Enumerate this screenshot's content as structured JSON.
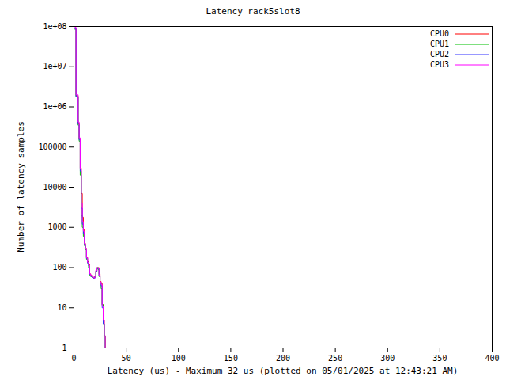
{
  "chart_data": {
    "type": "line",
    "title": "Latency rack5slot8",
    "x_label": "Latency (us) - Maximum 32 us (plotted on 05/01/2025 at 12:43:21 AM)",
    "y_label": "Number of latency samples",
    "log": "y",
    "grid": false,
    "legend": "top-right",
    "line_style": "step",
    "xlim": [
      0,
      400
    ],
    "xticks": [
      0,
      50,
      100,
      150,
      200,
      250,
      300,
      350,
      400
    ],
    "ylim": [
      1,
      100000000
    ],
    "yticks": [
      1,
      10,
      100,
      1000,
      10000,
      100000,
      {
        "value": 1000000,
        "label": "1e+06"
      },
      {
        "value": 10000000,
        "label": "1e+07"
      },
      {
        "value": 100000000,
        "label": "1e+08"
      }
    ],
    "x": [
      0,
      1,
      2,
      3,
      4,
      5,
      6,
      7,
      8,
      9,
      10,
      11,
      12,
      13,
      14,
      15,
      16,
      17,
      18,
      19,
      20,
      21,
      22,
      23,
      24,
      25,
      26,
      27,
      28,
      29,
      30,
      31,
      32
    ],
    "series": [
      {
        "name": "CPU0",
        "color": "#ff0000",
        "values": [
          null,
          90000000,
          1900000,
          1900000,
          400000,
          160000,
          30000,
          7000,
          1800,
          900,
          400,
          300,
          180,
          140,
          120,
          70,
          65,
          60,
          58,
          55,
          62,
          85,
          100,
          100,
          70,
          45,
          40,
          12,
          5,
          2,
          1,
          1,
          null
        ]
      },
      {
        "name": "CPU1",
        "color": "#00c000",
        "values": [
          null,
          85000000,
          1800000,
          1800000,
          350000,
          140000,
          20000,
          2000,
          1000,
          600,
          350,
          280,
          160,
          130,
          100,
          65,
          60,
          58,
          55,
          55,
          60,
          80,
          95,
          90,
          60,
          40,
          30,
          12,
          4,
          2,
          1,
          null,
          null
        ]
      },
      {
        "name": "CPU2",
        "color": "#3030ff",
        "values": [
          null,
          88000000,
          1800000,
          1800000,
          380000,
          150000,
          25000,
          3000,
          1200,
          700,
          380,
          290,
          170,
          130,
          110,
          68,
          62,
          58,
          56,
          54,
          60,
          82,
          100,
          95,
          62,
          42,
          35,
          10,
          4,
          1,
          null,
          null,
          null
        ]
      },
      {
        "name": "CPU3",
        "color": "#ff00ff",
        "values": [
          null,
          95000000,
          2000000,
          2000000,
          420000,
          170000,
          28000,
          4000,
          1400,
          800,
          390,
          300,
          175,
          135,
          115,
          70,
          64,
          60,
          57,
          55,
          61,
          84,
          98,
          98,
          65,
          44,
          38,
          11,
          5,
          2,
          1,
          null,
          null
        ]
      }
    ]
  }
}
